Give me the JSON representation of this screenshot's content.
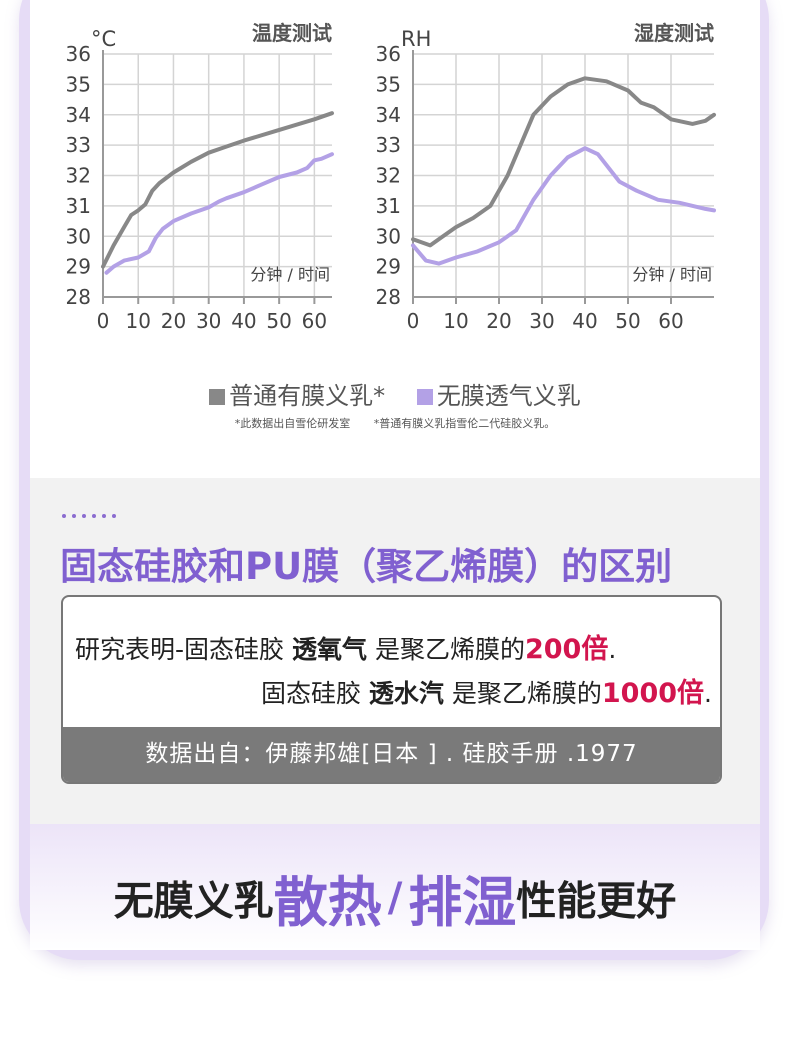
{
  "chart_data": [
    {
      "type": "line",
      "title": "温度测试",
      "unit": "°C",
      "xlabel": "分钟 / 时间",
      "xticks": [
        0,
        10,
        20,
        30,
        40,
        50,
        60
      ],
      "yticks": [
        28,
        29,
        30,
        31,
        32,
        33,
        34,
        35,
        36
      ],
      "xlim": [
        0,
        65
      ],
      "ylim": [
        28,
        36
      ],
      "grid": true,
      "series": [
        {
          "name": "普通有膜义乳*",
          "color": "#888888",
          "x": [
            0,
            3,
            6,
            8,
            10,
            12,
            14,
            16,
            20,
            25,
            30,
            35,
            40,
            50,
            60,
            65
          ],
          "y": [
            29.0,
            29.7,
            30.3,
            30.7,
            30.85,
            31.05,
            31.5,
            31.75,
            32.1,
            32.45,
            32.75,
            32.95,
            33.15,
            33.5,
            33.85,
            34.05
          ]
        },
        {
          "name": "无膜透气义乳",
          "color": "#b3a1e6",
          "x": [
            1,
            3,
            6,
            10,
            13,
            15,
            17,
            20,
            25,
            30,
            33,
            35,
            40,
            45,
            50,
            55,
            58,
            60,
            62,
            65
          ],
          "y": [
            28.8,
            29.0,
            29.2,
            29.3,
            29.5,
            29.95,
            30.25,
            30.5,
            30.75,
            30.95,
            31.15,
            31.25,
            31.45,
            31.7,
            31.95,
            32.1,
            32.25,
            32.5,
            32.55,
            32.7
          ]
        }
      ]
    },
    {
      "type": "line",
      "title": "湿度测试",
      "unit": "RH",
      "xlabel": "分钟 / 时间",
      "xticks": [
        0,
        10,
        20,
        30,
        40,
        50,
        60
      ],
      "yticks": [
        28,
        29,
        30,
        31,
        32,
        33,
        34,
        35,
        36
      ],
      "xlim": [
        0,
        70
      ],
      "ylim": [
        28,
        36
      ],
      "grid": true,
      "series": [
        {
          "name": "普通有膜义乳*",
          "color": "#888888",
          "x": [
            0,
            4,
            6,
            10,
            14,
            18,
            22,
            25,
            28,
            32,
            36,
            40,
            45,
            50,
            53,
            56,
            60,
            65,
            68,
            70
          ],
          "y": [
            29.9,
            29.7,
            29.9,
            30.3,
            30.6,
            31.0,
            32.0,
            33.0,
            34.0,
            34.6,
            35.0,
            35.2,
            35.1,
            34.8,
            34.4,
            34.25,
            33.85,
            33.7,
            33.8,
            34.0
          ]
        },
        {
          "name": "无膜透气义乳",
          "color": "#b3a1e6",
          "x": [
            0,
            3,
            6,
            10,
            15,
            20,
            24,
            28,
            32,
            36,
            40,
            43,
            48,
            52,
            57,
            62,
            68,
            70
          ],
          "y": [
            29.7,
            29.2,
            29.1,
            29.3,
            29.5,
            29.8,
            30.2,
            31.2,
            32.0,
            32.6,
            32.9,
            32.7,
            31.8,
            31.5,
            31.2,
            31.1,
            30.9,
            30.85
          ]
        }
      ]
    }
  ],
  "legend": {
    "items": [
      {
        "label": "普通有膜义乳*",
        "color": "#888888"
      },
      {
        "label": "无膜透气义乳",
        "color": "#b3a1e6"
      }
    ]
  },
  "footnotes": {
    "left": "*此数据出自雪伦研发室",
    "right": "*普通有膜义乳指雪伦二代硅胶义乳。"
  },
  "section": {
    "title": "固态硅胶和PU膜（聚乙烯膜）的区别",
    "line1": {
      "prefix": "研究表明-固态硅胶",
      "bold": "透氧气",
      "middle": "是聚乙烯膜的",
      "highlight": "200倍",
      "end": "."
    },
    "line2": {
      "prefix": "固态硅胶",
      "bold": "透水汽",
      "middle": "是聚乙烯膜的",
      "highlight": "1000倍",
      "end": "."
    },
    "source": "数据出自：伊藤邦雄[日本 ] . 硅胶手册 .1977"
  },
  "slogan": {
    "part1": "无膜义乳",
    "accent1": "散热",
    "separator": "/",
    "accent2": "排湿",
    "part2": "性能更好"
  },
  "colors": {
    "accent": "#8060d0",
    "highlight": "#d2154e",
    "frame": "#e6dcf6"
  }
}
